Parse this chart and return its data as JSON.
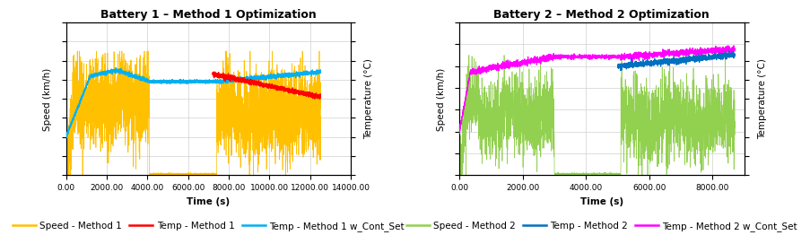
{
  "plot1": {
    "title": "Battery 1 – Method 1 Optimization",
    "xlabel": "Time (s)",
    "ylabel_left": "Speed (km/h)",
    "ylabel_right": "Temperature (°C)",
    "xlim": [
      0,
      14000
    ],
    "xticks": [
      0,
      2000,
      4000,
      6000,
      8000,
      10000,
      12000,
      14000
    ],
    "xtick_labels": [
      "0.00",
      "2000.00",
      "4000.00",
      "6000.00",
      "8000.00",
      "10000.00",
      "12000.00",
      "14000.00"
    ],
    "speed_color": "#FFC000",
    "temp1_color": "#FF0000",
    "temp2_color": "#00B0F0",
    "speed_ylim": [
      0,
      160
    ],
    "temp_ylim": [
      0,
      80
    ],
    "legend_labels": [
      "Speed - Method 1",
      "Temp - Method 1",
      "Temp - Method 1 w_Cont_Set"
    ]
  },
  "plot2": {
    "title": "Battery 2 – Method 2 Optimization",
    "xlabel": "Time (s)",
    "ylabel_left": "Speed (km/h)",
    "ylabel_right": "Temperature (°C)",
    "xlim": [
      0,
      9000
    ],
    "xticks": [
      0,
      2000,
      4000,
      6000,
      8000
    ],
    "xtick_labels": [
      "0.00",
      "2000.00",
      "4000.00",
      "6000.00",
      "8000.00"
    ],
    "speed_color": "#92D050",
    "temp1_color": "#0070C0",
    "temp2_color": "#FF00FF",
    "speed_ylim": [
      0,
      140
    ],
    "temp_ylim": [
      0,
      80
    ],
    "legend_labels": [
      "Speed - Method 2",
      "Temp - Method 2",
      "Temp - Method 2 w_Cont_Set"
    ]
  },
  "background_color": "#FFFFFF",
  "grid_color": "#D0D0D0",
  "title_fontsize": 9,
  "label_fontsize": 7.5,
  "tick_fontsize": 6.5,
  "legend_fontsize": 7.5
}
